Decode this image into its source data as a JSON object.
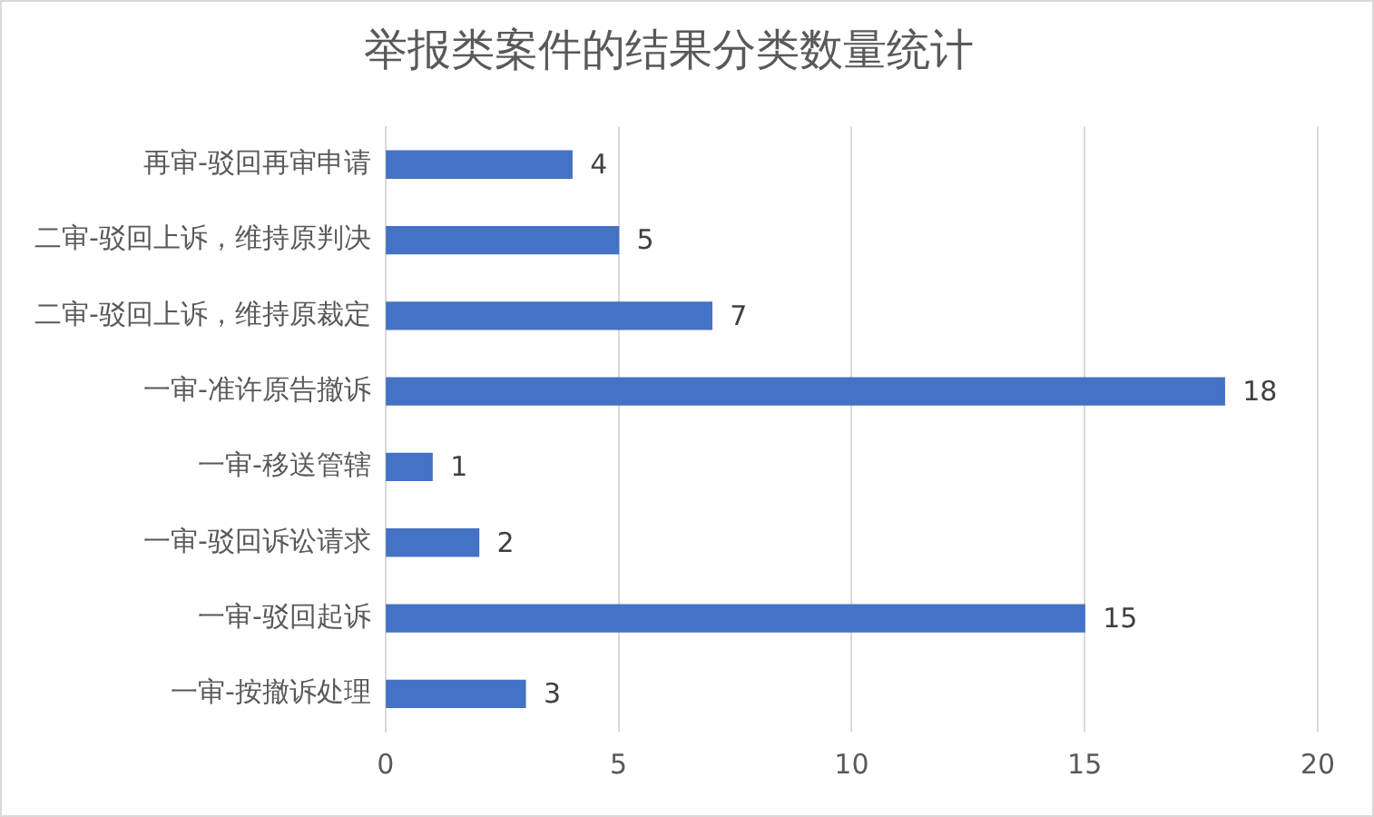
{
  "chart_data": {
    "type": "bar",
    "orientation": "horizontal",
    "title": "举报类案件的结果分类数量统计",
    "categories": [
      "再审-驳回再审申请",
      "二审-驳回上诉，维持原判决",
      "二审-驳回上诉，维持原裁定",
      "一审-准许原告撤诉",
      "一审-移送管辖",
      "一审-驳回诉讼请求",
      "一审-驳回起诉",
      "一审-按撤诉处理"
    ],
    "values": [
      4,
      5,
      7,
      18,
      1,
      2,
      15,
      3
    ],
    "color": "#4472c4",
    "xlim": [
      0,
      20
    ],
    "xticks": [
      0,
      5,
      10,
      15,
      20
    ],
    "grid": "x",
    "data_labels": true,
    "legend": false
  }
}
